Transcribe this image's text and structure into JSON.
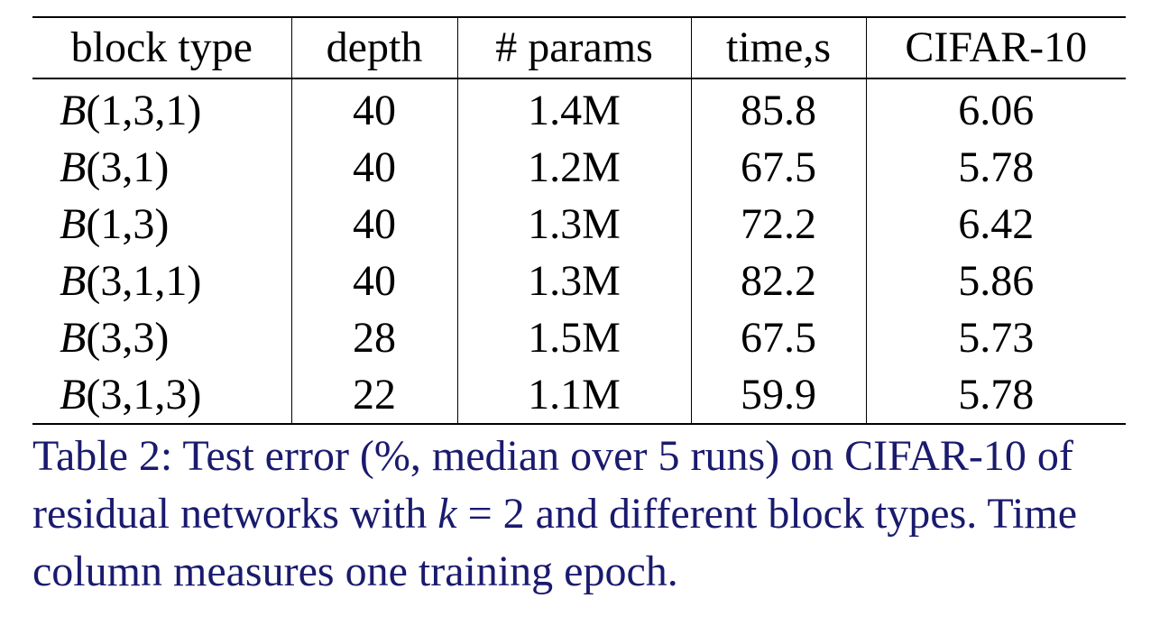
{
  "table": {
    "headers": [
      "block type",
      "depth",
      "# params",
      "time,s",
      "CIFAR-10"
    ],
    "rows": [
      {
        "type_symbol": "B",
        "type_args": "(1,3,1)",
        "depth": "40",
        "params": "1.4M",
        "time": "85.8",
        "cifar10": "6.06"
      },
      {
        "type_symbol": "B",
        "type_args": "(3,1)",
        "depth": "40",
        "params": "1.2M",
        "time": "67.5",
        "cifar10": "5.78"
      },
      {
        "type_symbol": "B",
        "type_args": "(1,3)",
        "depth": "40",
        "params": "1.3M",
        "time": "72.2",
        "cifar10": "6.42"
      },
      {
        "type_symbol": "B",
        "type_args": "(3,1,1)",
        "depth": "40",
        "params": "1.3M",
        "time": "82.2",
        "cifar10": "5.86"
      },
      {
        "type_symbol": "B",
        "type_args": "(3,3)",
        "depth": "28",
        "params": "1.5M",
        "time": "67.5",
        "cifar10": "5.73"
      },
      {
        "type_symbol": "B",
        "type_args": "(3,1,3)",
        "depth": "22",
        "params": "1.1M",
        "time": "59.9",
        "cifar10": "5.78"
      }
    ]
  },
  "caption": {
    "part1": "Table 2: Test error (%, median over 5 runs) on CIFAR-10 of residual networks with ",
    "math_var": "k",
    "math_rest": " = 2",
    "part2": " and different block types. Time column measures one training epoch."
  },
  "colors": {
    "caption_text": "#1a1a6e",
    "table_text": "#000000"
  }
}
